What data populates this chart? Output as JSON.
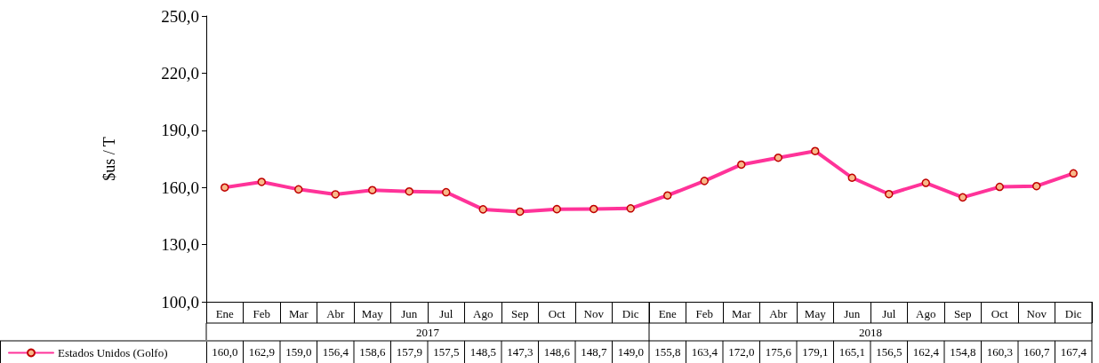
{
  "chart_data": {
    "type": "line",
    "ylabel": "$us / T",
    "categories": [
      "Ene",
      "Feb",
      "Mar",
      "Abr",
      "May",
      "Jun",
      "Jul",
      "Ago",
      "Sep",
      "Oct",
      "Nov",
      "Dic",
      "Ene",
      "Feb",
      "Mar",
      "Abr",
      "May",
      "Jun",
      "Jul",
      "Ago",
      "Sep",
      "Oct",
      "Nov",
      "Dic"
    ],
    "annotations": [
      "2017",
      "2018"
    ],
    "series": [
      {
        "name": "Estados Unidos (Golfo)",
        "color": "#ff3399",
        "values": [
          160.0,
          162.9,
          159.0,
          156.4,
          158.6,
          157.9,
          157.5,
          148.5,
          147.3,
          148.6,
          148.7,
          149.0,
          155.8,
          163.4,
          172.0,
          175.6,
          179.1,
          165.1,
          156.5,
          162.4,
          154.8,
          160.3,
          160.7,
          167.4
        ],
        "value_labels": [
          "160,0",
          "162,9",
          "159,0",
          "156,4",
          "158,6",
          "157,9",
          "157,5",
          "148,5",
          "147,3",
          "148,6",
          "148,7",
          "149,0",
          "155,8",
          "163,4",
          "172,0",
          "175,6",
          "179,1",
          "165,1",
          "156,5",
          "162,4",
          "154,8",
          "160,3",
          "160,7",
          "167,4"
        ]
      }
    ],
    "ylim": [
      100,
      250
    ],
    "yticks": [
      {
        "value": 100,
        "label": "100,0"
      },
      {
        "value": 130,
        "label": "130,0"
      },
      {
        "value": 160,
        "label": "160,0"
      },
      {
        "value": 190,
        "label": "190,0"
      },
      {
        "value": 220,
        "label": "220,0"
      },
      {
        "value": 250,
        "label": "250,0"
      }
    ],
    "grid": false,
    "legend": "bottom left",
    "marker": "circle",
    "line_style": "solid"
  }
}
